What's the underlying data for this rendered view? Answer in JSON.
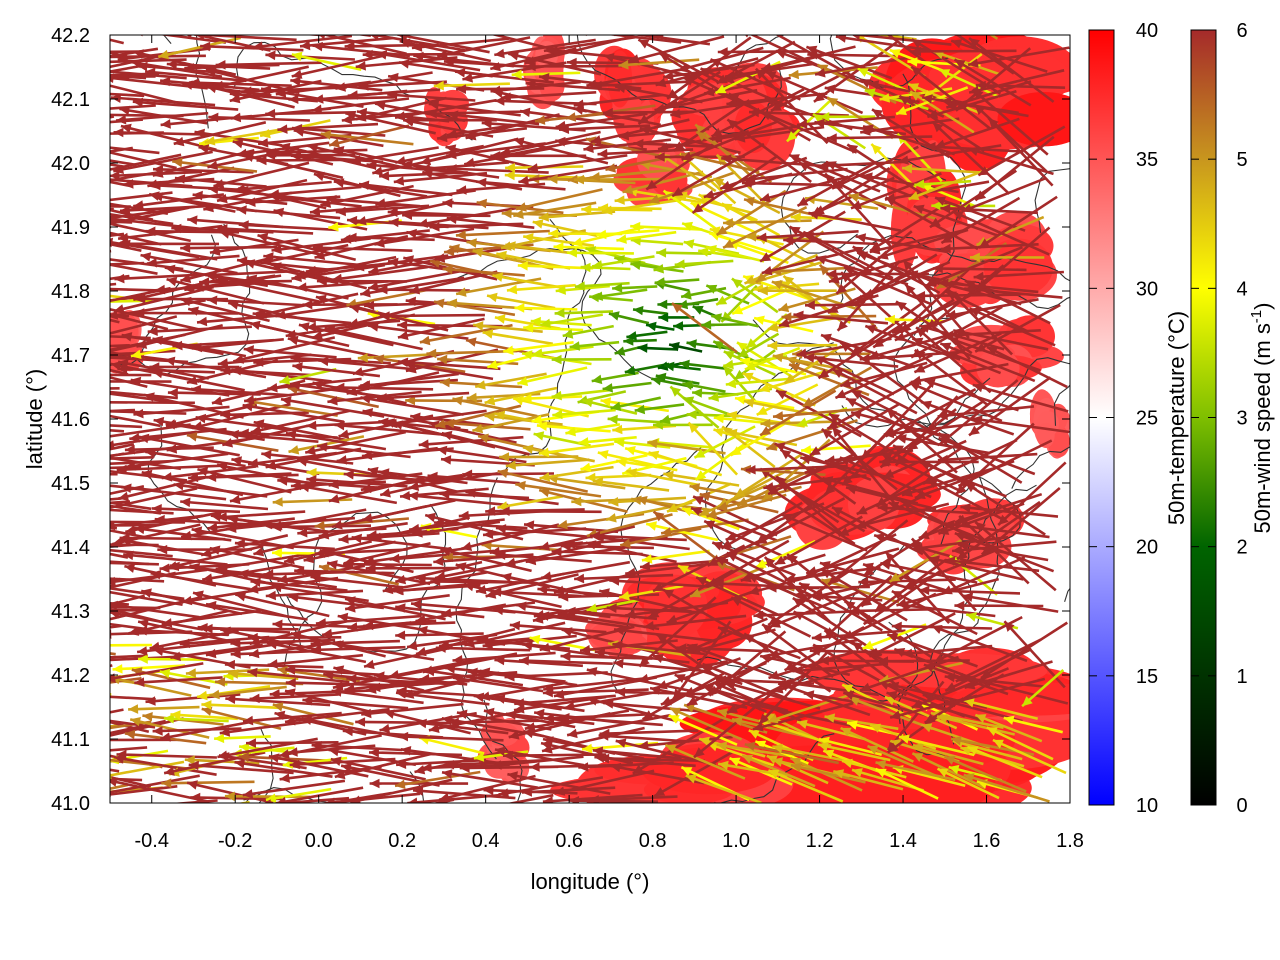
{
  "chart_data": {
    "type": "vector-field-heatmap",
    "xlabel": "longitude (°)",
    "ylabel": "latitude (°)",
    "xlim": [
      -0.5,
      1.8
    ],
    "ylim": [
      41.0,
      42.2
    ],
    "x_ticks": [
      -0.4,
      -0.2,
      0.0,
      0.2,
      0.4,
      0.6,
      0.8,
      1.0,
      1.2,
      1.4,
      1.6,
      1.8
    ],
    "x_tick_labels": [
      "-0.4",
      "-0.2",
      "0.0",
      "0.2",
      "0.4",
      "0.6",
      "0.8",
      "1.0",
      "1.2",
      "1.4",
      "1.6",
      "1.8"
    ],
    "y_ticks": [
      41.0,
      41.1,
      41.2,
      41.3,
      41.4,
      41.5,
      41.6,
      41.7,
      41.8,
      41.9,
      42.0,
      42.1,
      42.2
    ],
    "y_tick_labels": [
      "41.0",
      "41.1",
      "41.2",
      "41.3",
      "41.4",
      "41.5",
      "41.6",
      "41.7",
      "41.8",
      "41.9",
      "42.0",
      "42.1",
      "42.2"
    ],
    "colorbars": [
      {
        "title": "50m-temperature (°C)",
        "range": [
          10,
          40
        ],
        "ticks": [
          10,
          15,
          20,
          25,
          30,
          35,
          40
        ],
        "tick_labels": [
          "10",
          "15",
          "20",
          "25",
          "30",
          "35",
          "40"
        ],
        "colors": [
          "#0000ff",
          "#ffffff",
          "#ff0000"
        ]
      },
      {
        "title_main": "50m-wind speed (m s",
        "title_sup": "-1",
        "title_end": ")",
        "range": [
          0,
          6
        ],
        "ticks": [
          0,
          1,
          2,
          3,
          4,
          5,
          6
        ],
        "tick_labels": [
          "0",
          "1",
          "2",
          "3",
          "4",
          "5",
          "6"
        ],
        "colors": [
          "#000000",
          "#006400",
          "#7fbf00",
          "#ffff00",
          "#c8961e",
          "#a52a2a"
        ]
      }
    ],
    "temperature_hotspots": [
      {
        "x": 0.9,
        "y": 41.3,
        "rx": 0.17,
        "ry": 0.07,
        "t": 38
      },
      {
        "x": 0.72,
        "y": 41.27,
        "rx": 0.08,
        "ry": 0.04,
        "t": 37
      },
      {
        "x": 1.35,
        "y": 41.08,
        "rx": 0.5,
        "ry": 0.1,
        "t": 39
      },
      {
        "x": 0.85,
        "y": 41.05,
        "rx": 0.25,
        "ry": 0.06,
        "t": 38
      },
      {
        "x": 1.55,
        "y": 41.18,
        "rx": 0.28,
        "ry": 0.05,
        "t": 38
      },
      {
        "x": 1.3,
        "y": 41.47,
        "rx": 0.17,
        "ry": 0.07,
        "t": 38
      },
      {
        "x": 1.55,
        "y": 41.42,
        "rx": 0.12,
        "ry": 0.05,
        "t": 37
      },
      {
        "x": 1.6,
        "y": 42.1,
        "rx": 0.23,
        "ry": 0.1,
        "t": 39
      },
      {
        "x": 1.45,
        "y": 41.95,
        "rx": 0.08,
        "ry": 0.1,
        "t": 38
      },
      {
        "x": 1.62,
        "y": 41.85,
        "rx": 0.12,
        "ry": 0.06,
        "t": 37
      },
      {
        "x": 1.65,
        "y": 41.7,
        "rx": 0.12,
        "ry": 0.05,
        "t": 37
      },
      {
        "x": 0.75,
        "y": 42.1,
        "rx": 0.08,
        "ry": 0.08,
        "t": 38
      },
      {
        "x": 1.0,
        "y": 42.08,
        "rx": 0.12,
        "ry": 0.07,
        "t": 38
      },
      {
        "x": 0.8,
        "y": 41.98,
        "rx": 0.08,
        "ry": 0.04,
        "t": 37
      },
      {
        "x": 0.3,
        "y": 42.07,
        "rx": 0.05,
        "ry": 0.04,
        "t": 37
      },
      {
        "x": 0.55,
        "y": 42.15,
        "rx": 0.05,
        "ry": 0.05,
        "t": 36
      },
      {
        "x": -0.48,
        "y": 41.72,
        "rx": 0.05,
        "ry": 0.04,
        "t": 36
      },
      {
        "x": 0.45,
        "y": 41.08,
        "rx": 0.05,
        "ry": 0.05,
        "t": 36
      },
      {
        "x": 1.75,
        "y": 41.58,
        "rx": 0.04,
        "ry": 0.05,
        "t": 36
      }
    ]
  }
}
